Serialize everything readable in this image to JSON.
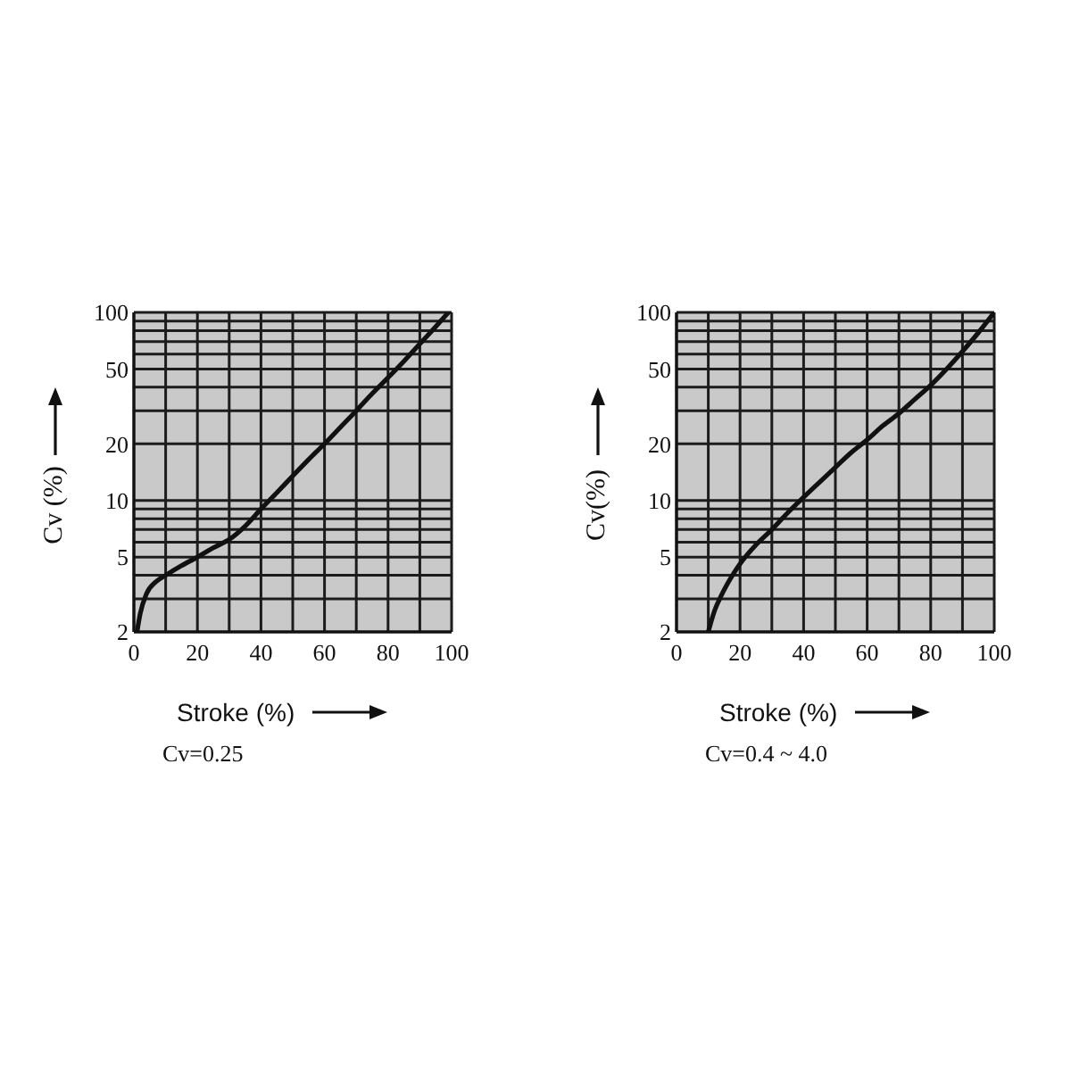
{
  "chart_data": [
    {
      "type": "line",
      "xlabel": "Stroke (%)",
      "ylabel": "Cv (%)",
      "annotations": [
        "Cv=0.25"
      ],
      "color": "#111111",
      "x": [
        1,
        2,
        4,
        7,
        10,
        15,
        20,
        25,
        30,
        35,
        40,
        45,
        50,
        55,
        60,
        65,
        70,
        75,
        80,
        85,
        90,
        95,
        99
      ],
      "values": [
        2,
        2.5,
        3.2,
        3.7,
        4.0,
        4.5,
        5.0,
        5.6,
        6.2,
        7.3,
        9.0,
        11,
        13.5,
        16.5,
        20,
        24.5,
        30,
        37,
        45,
        55,
        68,
        84,
        100
      ],
      "xlim": [
        0,
        100
      ],
      "xticks": [
        0,
        {
          "value": 10,
          "label": null
        },
        20,
        {
          "value": 30,
          "label": null
        },
        40,
        {
          "value": 50,
          "label": null
        },
        60,
        {
          "value": 70,
          "label": null
        },
        80,
        {
          "value": 90,
          "label": null
        },
        100
      ],
      "ylim": [
        2,
        100
      ],
      "yticks": [
        2,
        {
          "value": 3,
          "label": null
        },
        {
          "value": 4,
          "label": null
        },
        5,
        {
          "value": 6,
          "label": null
        },
        {
          "value": 7,
          "label": null
        },
        {
          "value": 8,
          "label": null
        },
        {
          "value": 9,
          "label": null
        },
        10,
        20,
        {
          "value": 30,
          "label": null
        },
        {
          "value": 40,
          "label": null
        },
        50,
        {
          "value": 60,
          "label": null
        },
        {
          "value": 70,
          "label": null
        },
        {
          "value": 80,
          "label": null
        },
        {
          "value": 90,
          "label": null
        },
        100
      ],
      "log": "y",
      "grid": true
    },
    {
      "type": "line",
      "xlabel": "Stroke (%)",
      "ylabel": "Cv(%)",
      "annotations": [
        "Cv=0.4 ~ 4.0"
      ],
      "color": "#111111",
      "x": [
        10,
        11,
        12,
        14,
        16,
        18,
        20,
        25,
        30,
        35,
        40,
        45,
        50,
        55,
        60,
        65,
        70,
        75,
        80,
        85,
        90,
        95,
        100
      ],
      "values": [
        2,
        2.3,
        2.6,
        3.1,
        3.6,
        4.1,
        4.6,
        5.8,
        7.0,
        8.6,
        10.4,
        12.5,
        15,
        18,
        21,
        25,
        29,
        34.5,
        41,
        50,
        62,
        78,
        100
      ],
      "xlim": [
        0,
        100
      ],
      "xticks": [
        0,
        {
          "value": 10,
          "label": null
        },
        20,
        {
          "value": 30,
          "label": null
        },
        40,
        {
          "value": 50,
          "label": null
        },
        60,
        {
          "value": 70,
          "label": null
        },
        80,
        {
          "value": 90,
          "label": null
        },
        100
      ],
      "ylim": [
        2,
        100
      ],
      "yticks": [
        2,
        {
          "value": 3,
          "label": null
        },
        {
          "value": 4,
          "label": null
        },
        5,
        {
          "value": 6,
          "label": null
        },
        {
          "value": 7,
          "label": null
        },
        {
          "value": 8,
          "label": null
        },
        {
          "value": 9,
          "label": null
        },
        10,
        20,
        {
          "value": 30,
          "label": null
        },
        {
          "value": 40,
          "label": null
        },
        50,
        {
          "value": 60,
          "label": null
        },
        {
          "value": 70,
          "label": null
        },
        {
          "value": 80,
          "label": null
        },
        {
          "value": 90,
          "label": null
        },
        100
      ],
      "log": "y",
      "grid": true
    }
  ]
}
